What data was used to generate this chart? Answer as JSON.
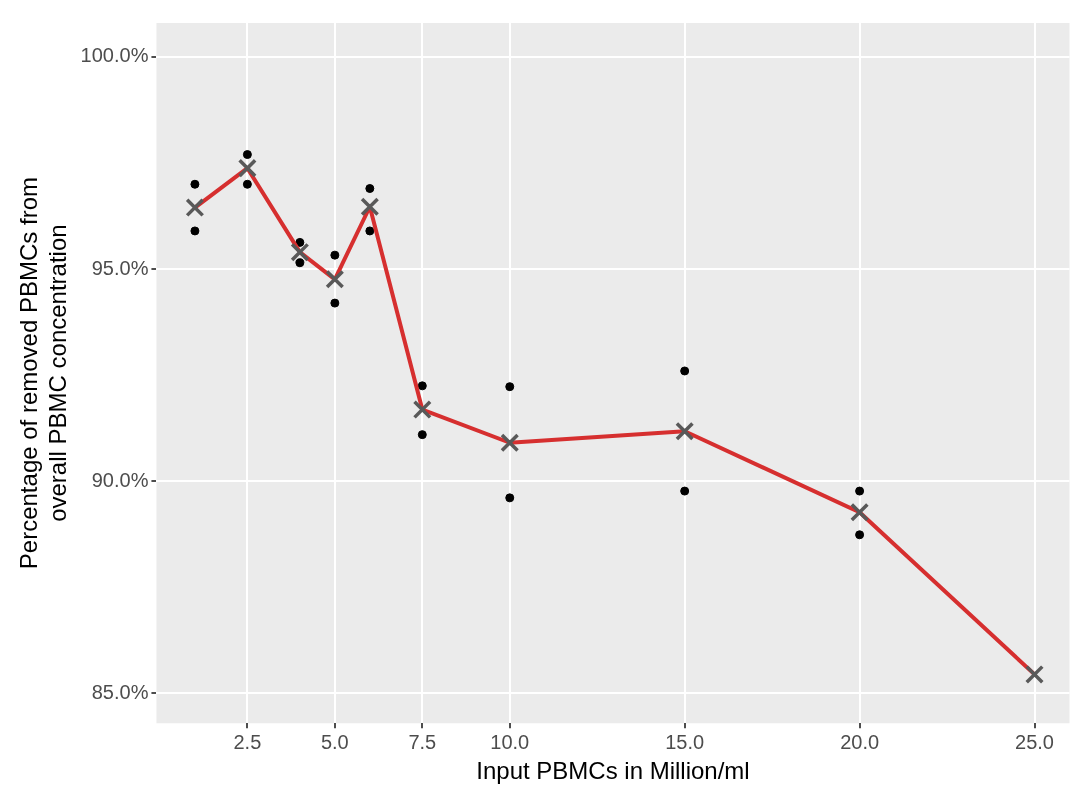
{
  "chart_data": {
    "type": "line",
    "xlabel": "Input PBMCs in Million/ml",
    "ylabel": "Percentage of removed PBMCs from\noverall PBMC concentration",
    "xlim": [
      -0.1,
      26.0
    ],
    "xticks": [
      {
        "value": 2.5,
        "label": "2.5"
      },
      {
        "value": 5,
        "label": "5.0"
      },
      {
        "value": 7.5,
        "label": "7.5"
      },
      {
        "value": 10,
        "label": "10.0"
      },
      {
        "value": 15,
        "label": "15.0"
      },
      {
        "value": 20,
        "label": "20.0"
      },
      {
        "value": 25,
        "label": "25.0"
      }
    ],
    "ylim": [
      84.3,
      100.8
    ],
    "yticks": [
      {
        "value": 85,
        "label": "85.0%"
      },
      {
        "value": 90,
        "label": "90.0%"
      },
      {
        "value": 95,
        "label": "95.0%"
      },
      {
        "value": 100,
        "label": "100.0%"
      }
    ],
    "grid": true,
    "legend": false,
    "series": [
      {
        "type": "scatter",
        "color": "#000000",
        "marker": "circle",
        "x": [
          1,
          1,
          2.5,
          2.5,
          4,
          4,
          5,
          5,
          6,
          6,
          7.5,
          7.5,
          10,
          10,
          15,
          15,
          20,
          20
        ],
        "values": [
          97.0,
          95.9,
          97.7,
          97.0,
          95.63,
          95.15,
          95.33,
          94.2,
          96.9,
          95.9,
          92.25,
          91.1,
          92.23,
          89.61,
          92.6,
          89.77,
          89.77,
          88.74
        ]
      },
      {
        "color": "#d62f2f",
        "marker": "none",
        "line_style": "solid",
        "x": [
          1,
          2.5,
          4,
          5,
          6,
          7.5,
          10,
          15,
          20,
          25
        ],
        "values": [
          96.45,
          97.38,
          95.4,
          94.76,
          96.47,
          91.69,
          90.91,
          91.18,
          89.27,
          85.45
        ]
      },
      {
        "type": "scatter",
        "color": "#595959",
        "marker": "cross",
        "x": [
          1,
          2.5,
          4,
          5,
          6,
          7.5,
          10,
          15,
          20,
          25
        ],
        "values": [
          96.45,
          97.38,
          95.4,
          94.76,
          96.47,
          91.69,
          90.91,
          91.18,
          89.27,
          85.45
        ]
      }
    ]
  }
}
